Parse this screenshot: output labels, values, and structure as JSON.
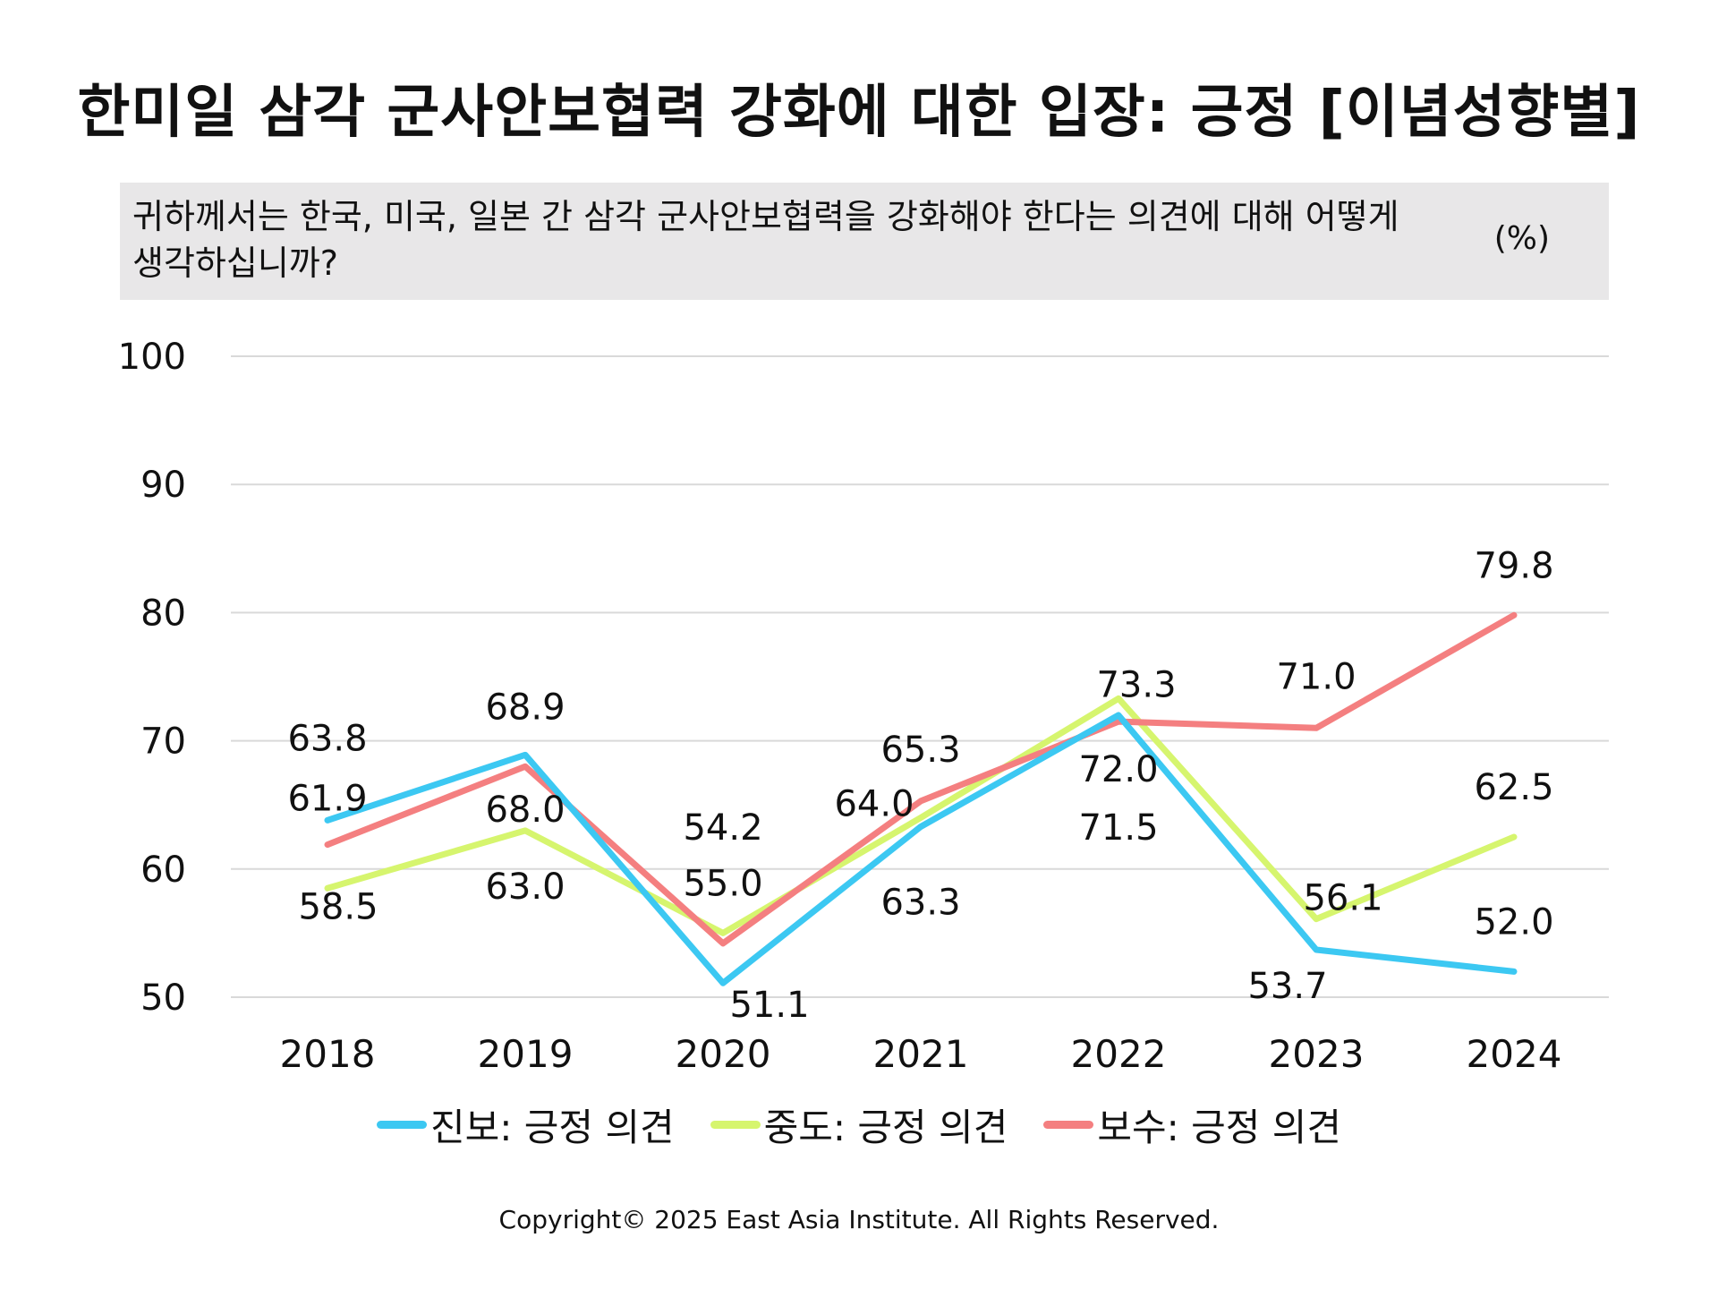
{
  "title": "한미일 삼각 군사안보협력 강화에 대한 입장: 긍정 [이념성향별]",
  "question": "귀하께서는 한국, 미국, 일본 간 삼각 군사안보협력을 강화해야 한다는 의견에 대해 어떻게 생각하십니까?",
  "unit": "(%)",
  "copyright": "Copyright© 2025 East Asia Institute. All Rights Reserved.",
  "chart_data": {
    "type": "line",
    "title": "한미일 삼각 군사안보협력 강화에 대한 입장: 긍정 [이념성향별]",
    "categories": [
      "2018",
      "2019",
      "2020",
      "2021",
      "2022",
      "2023",
      "2024"
    ],
    "ylim": [
      50,
      100
    ],
    "yticks": [
      "100",
      "90",
      "80",
      "70",
      "60",
      "50"
    ],
    "ytick_values": [
      100,
      90,
      80,
      70,
      60,
      50
    ],
    "grid": true,
    "legend_position": "bottom",
    "series": [
      {
        "name": "진보: 긍정 의견",
        "color": "#3cc8f2",
        "values": [
          63.8,
          68.9,
          51.1,
          63.3,
          72.0,
          53.7,
          52.0
        ],
        "labels": [
          "63.8",
          "68.9",
          "51.1",
          "63.3",
          "72.0",
          "53.7",
          "52.0"
        ]
      },
      {
        "name": "중도: 긍정 의견",
        "color": "#d6f56e",
        "values": [
          58.5,
          63.0,
          55.0,
          64.0,
          73.3,
          56.1,
          62.5
        ],
        "labels": [
          "58.5",
          "63.0",
          "55.0",
          "64.0",
          "73.3",
          "56.1",
          "62.5"
        ]
      },
      {
        "name": "보수: 긍정 의견",
        "color": "#f47f80",
        "values": [
          61.9,
          68.0,
          54.2,
          65.3,
          71.5,
          71.0,
          79.8
        ],
        "labels": [
          "61.9",
          "68.0",
          "54.2",
          "65.3",
          "71.5",
          "71.0",
          "79.8"
        ]
      }
    ]
  }
}
